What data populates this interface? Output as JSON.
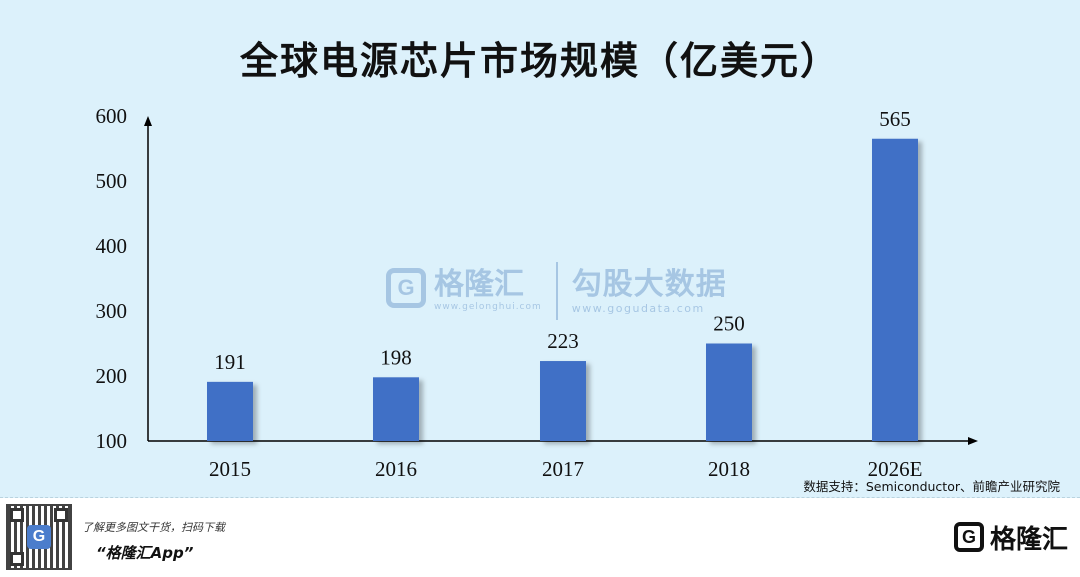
{
  "title": "全球电源芯片市场规模（亿美元）",
  "chart_data": {
    "type": "bar",
    "title": "全球电源芯片市场规模（亿美元）",
    "categories": [
      "2015",
      "2016",
      "2017",
      "2018",
      "2026E"
    ],
    "values": [
      191,
      198,
      223,
      250,
      565
    ],
    "data_labels": [
      "191",
      "198",
      "223",
      "250",
      "565"
    ],
    "y_ticks": [
      "100",
      "200",
      "300",
      "400",
      "500",
      "600"
    ],
    "ylim": [
      100,
      600
    ],
    "grid": false,
    "bar_color": "#3f6fc6",
    "xlabel": "",
    "ylabel": ""
  },
  "source": "数据支持：Semiconductor、前瞻产业研究院",
  "watermark": {
    "brand": "格隆汇",
    "brand_url": "www.gelonghui.com",
    "partner": "勾股大数据",
    "partner_url": "www.gogudata.com"
  },
  "footer": {
    "promo": "了解更多图文干货，扫码下载",
    "app_name": "“格隆汇App”",
    "qr_letter": "G",
    "brand_letter": "G",
    "brand_name": "格隆汇"
  }
}
